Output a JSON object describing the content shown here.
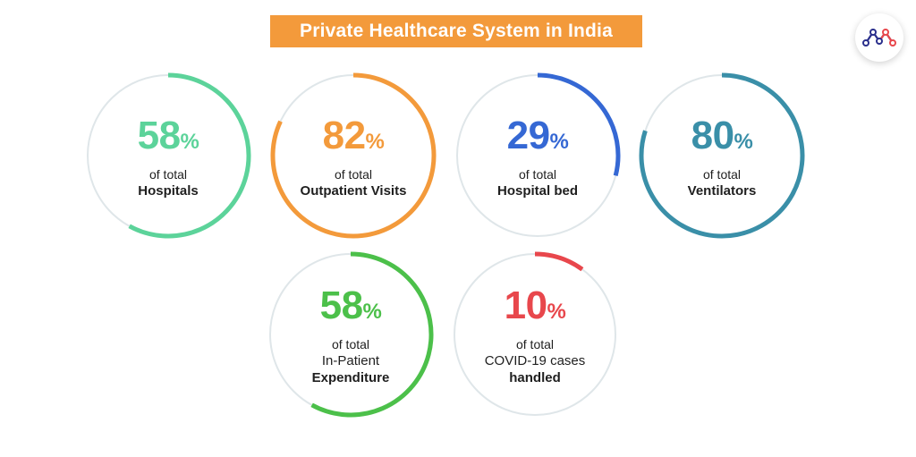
{
  "title": "Private Healthcare System in India",
  "chart_data": {
    "type": "radial-progress",
    "unit": "%",
    "items": [
      {
        "value": 58,
        "unit": "%",
        "prefix": "of total",
        "label_lines": [
          "Hospitals"
        ],
        "color": "#5cd39a"
      },
      {
        "value": 82,
        "unit": "%",
        "prefix": "of total",
        "label_lines": [
          "Outpatient Visits"
        ],
        "color": "#f39a3b"
      },
      {
        "value": 29,
        "unit": "%",
        "prefix": "of total",
        "label_lines": [
          "Hospital bed"
        ],
        "color": "#3568d4"
      },
      {
        "value": 80,
        "unit": "%",
        "prefix": "of total",
        "label_lines": [
          "Ventilators"
        ],
        "color": "#3a8fa8"
      },
      {
        "value": 58,
        "unit": "%",
        "prefix": "of total",
        "label_lines": [
          "In-Patient",
          "Expenditure"
        ],
        "color": "#4cc04a"
      },
      {
        "value": 10,
        "unit": "%",
        "prefix": "of total",
        "label_lines": [
          "COVID-19 cases",
          "handled"
        ],
        "color": "#e8474c"
      }
    ]
  },
  "colors": {
    "title_bg": "#f39a3b",
    "track": "#dfe6e9",
    "text": "#1f1f1f"
  },
  "logo": {
    "icon": "network-logo-icon"
  }
}
